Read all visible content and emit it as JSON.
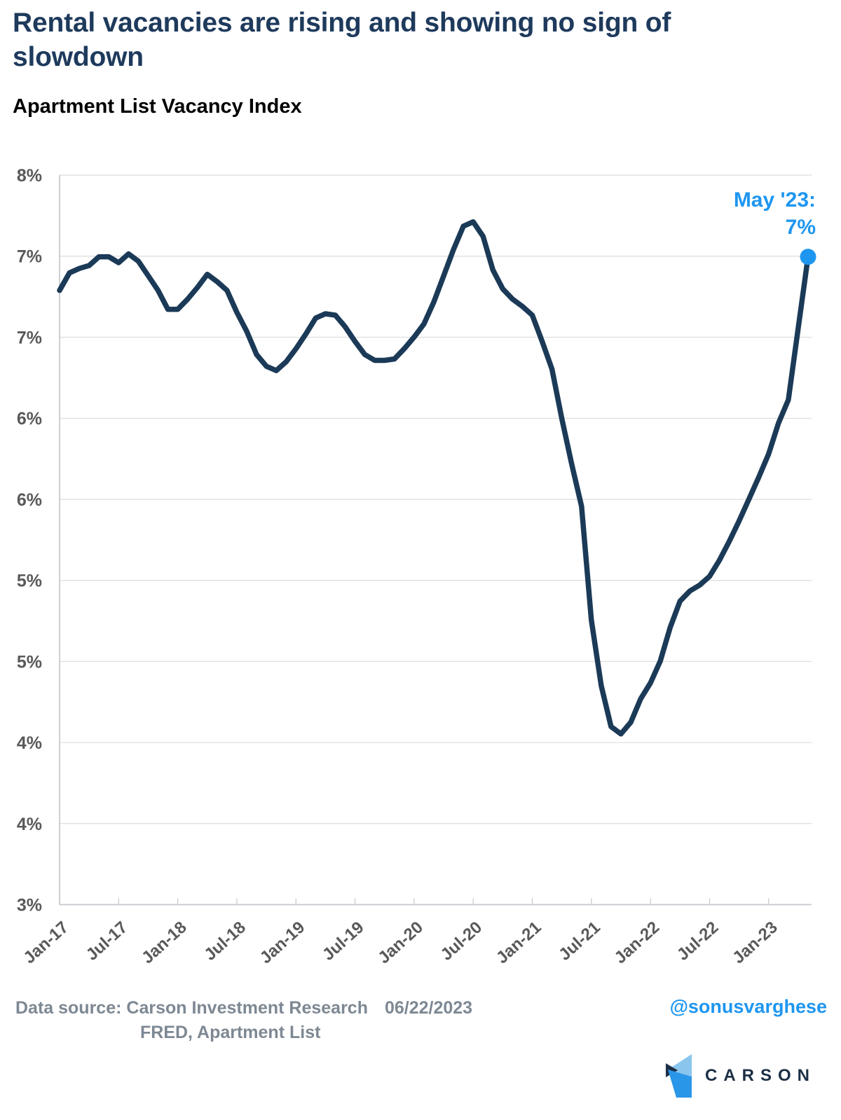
{
  "header": {
    "title_line1": "Rental vacancies are rising and showing no sign of",
    "title_line2": "slowdown",
    "subtitle": "Apartment List Vacancy Index"
  },
  "annotation": {
    "line1": "May '23:",
    "line2": "7%"
  },
  "footer": {
    "source_line1": "Data source: Carson Investment Research",
    "date": "06/22/2023",
    "source_line2": "FRED, Apartment List",
    "handle": "@sonusvarghese",
    "brand": "CARSON"
  },
  "colors": {
    "title": "#1e3a5c",
    "line": "#1b3a57",
    "accent_blue": "#1e96f0",
    "axis_text": "#595959",
    "gridline": "#dcdcdc",
    "axis_line": "#c4c8cc",
    "footer_text": "#7d8893",
    "brand_navy": "#1c2f45",
    "logo_light": "#8ac5ee",
    "logo_blue": "#2a96e8"
  },
  "chart_data": {
    "type": "line",
    "title": "Apartment List Vacancy Index",
    "frequency": "monthly",
    "x_start": "Jan-17",
    "x_end": "May-23",
    "x_tick_labels": [
      "Jan-17",
      "Jul-17",
      "Jan-18",
      "Jul-18",
      "Jan-19",
      "Jul-19",
      "Jan-20",
      "Jul-20",
      "Jan-21",
      "Jul-21",
      "Jan-22",
      "Jul-22",
      "Jan-23"
    ],
    "x_tick_interval_months": 6,
    "y_tick_labels": [
      "8%",
      "7%",
      "7%",
      "6%",
      "6%",
      "5%",
      "5%",
      "4%",
      "4%",
      "3%"
    ],
    "ylim": [
      3.0,
      8.0
    ],
    "grid": "horizontal",
    "legend": "none",
    "series": [
      {
        "name": "Apartment List Vacancy Index",
        "values": [
          7.21,
          7.33,
          7.36,
          7.38,
          7.44,
          7.44,
          7.4,
          7.46,
          7.41,
          7.31,
          7.21,
          7.08,
          7.08,
          7.15,
          7.23,
          7.32,
          7.27,
          7.21,
          7.06,
          6.93,
          6.77,
          6.69,
          6.66,
          6.72,
          6.81,
          6.91,
          7.02,
          7.05,
          7.04,
          6.96,
          6.86,
          6.77,
          6.73,
          6.73,
          6.74,
          6.81,
          6.89,
          6.98,
          7.13,
          7.31,
          7.49,
          7.65,
          7.68,
          7.58,
          7.35,
          7.22,
          7.15,
          7.1,
          7.04,
          6.86,
          6.67,
          6.33,
          6.02,
          5.73,
          4.95,
          4.5,
          4.22,
          4.17,
          4.25,
          4.41,
          4.52,
          4.67,
          4.9,
          5.08,
          5.15,
          5.19,
          5.25,
          5.36,
          5.49,
          5.63,
          5.78,
          5.93,
          6.09,
          6.3,
          6.46,
          6.95,
          7.44
        ]
      }
    ],
    "last_point": {
      "label": "May '23:",
      "value_label": "7%",
      "value": 7.44
    }
  }
}
